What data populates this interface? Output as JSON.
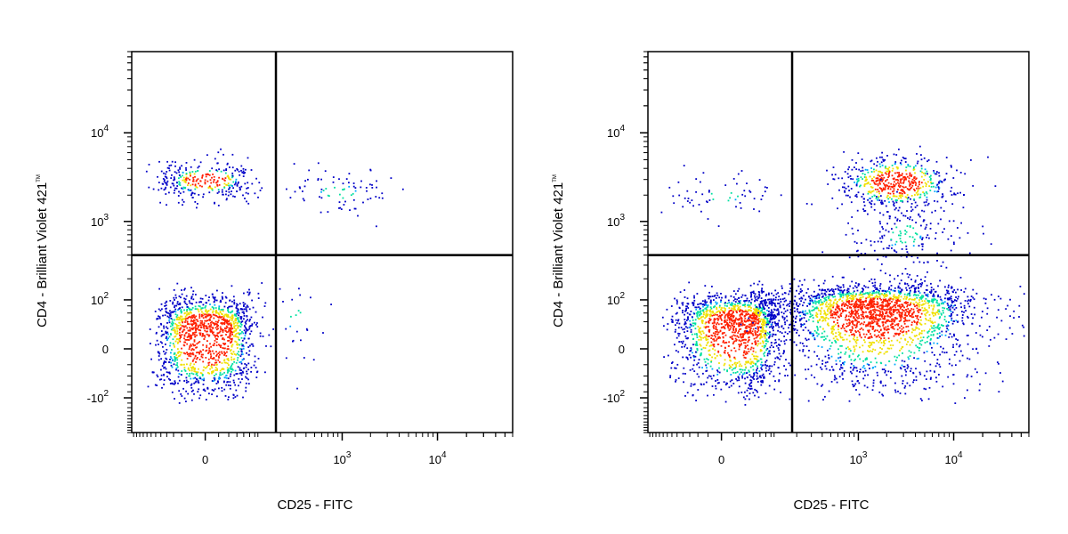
{
  "chart_data": [
    {
      "type": "scatter",
      "xlabel": "CD25 - FITC",
      "ylabel": "CD4 - Brilliant Violet 421",
      "ylabel_mark": "TM",
      "x_scale": "biexponential",
      "y_scale": "biexponential",
      "x_ticks": [
        "0",
        "10^3",
        "10^4"
      ],
      "y_ticks": [
        "-10^2",
        "0",
        "10^2",
        "10^3",
        "10^4"
      ],
      "gate": {
        "x": 175,
        "y": 400
      },
      "colormap": [
        "#0000c8",
        "#00a8ff",
        "#00e0a0",
        "#f0e000",
        "#ff2000"
      ],
      "populations": [
        {
          "name": "",
          "x_center": 0,
          "y_center": 3000,
          "x_spread": 40,
          "y_spread": 0.12,
          "count": 320
        },
        {
          "name": "",
          "x_center": 0,
          "y_center": 20,
          "x_spread": 40,
          "y_spread": 45,
          "count": 1400
        },
        {
          "name": "",
          "x_center": 900,
          "y_center": 2200,
          "x_spread": 0.35,
          "y_spread": 0.15,
          "count": 80
        },
        {
          "name": "",
          "x_center": 300,
          "y_center": 60,
          "x_spread": 0.25,
          "y_spread": 60,
          "count": 30
        }
      ]
    },
    {
      "type": "scatter",
      "xlabel": "CD25 - FITC",
      "ylabel": "CD4 - Brilliant Violet 421",
      "ylabel_mark": "TM",
      "x_scale": "biexponential",
      "y_scale": "biexponential",
      "x_ticks": [
        "0",
        "10^3",
        "10^4"
      ],
      "y_ticks": [
        "-10^2",
        "0",
        "10^2",
        "10^3",
        "10^4"
      ],
      "gate": {
        "x": 175,
        "y": 400
      },
      "colormap": [
        "#0000c8",
        "#00a8ff",
        "#00e0a0",
        "#f0e000",
        "#ff2000"
      ],
      "populations": [
        {
          "name": "",
          "x_center": 20,
          "y_center": 30,
          "x_spread": 45,
          "y_spread": 45,
          "count": 1500
        },
        {
          "name": "",
          "x_center": 1500,
          "y_center": 60,
          "x_spread": 0.55,
          "y_spread": 55,
          "count": 2200
        },
        {
          "name": "",
          "x_center": 2500,
          "y_center": 2800,
          "x_spread": 0.3,
          "y_spread": 0.15,
          "count": 550
        },
        {
          "name": "",
          "x_center": 0,
          "y_center": 2000,
          "x_spread": 40,
          "y_spread": 0.12,
          "count": 60
        },
        {
          "name": "",
          "x_center": 3000,
          "y_center": 700,
          "x_spread": 0.3,
          "y_spread": 0.25,
          "count": 200
        }
      ]
    }
  ]
}
